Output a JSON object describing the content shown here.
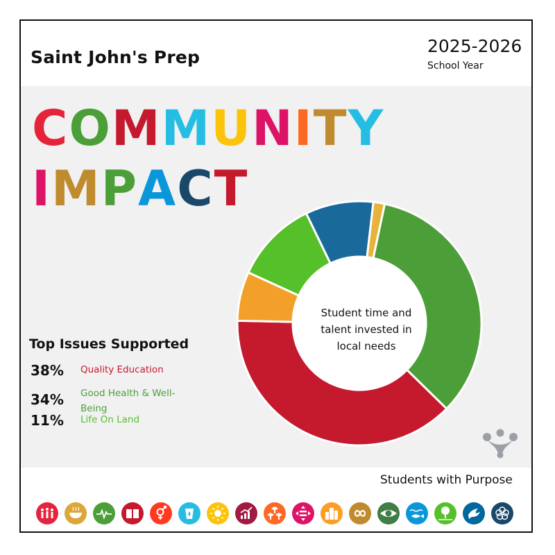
{
  "header": {
    "school_name": "Saint John's Prep",
    "year": "2025-2026",
    "year_label": "School Year"
  },
  "title": {
    "line1": "COMMUNITY",
    "line2": "IMPACT",
    "letter_colors_line1": [
      "#e5243b",
      "#4c9f38",
      "#c5192d",
      "#26bde2",
      "#fcc30b",
      "#dd1367",
      "#fd6925",
      "#bf8b2e",
      "#26bde2",
      "#19486a"
    ],
    "letter_colors_line2": [
      "#dd1367",
      "#bf8b2e",
      "#4c9f38",
      "#0a97d9",
      "#19486a",
      "#c5192d"
    ]
  },
  "donut": {
    "center_text_line1": "Student time and",
    "center_text_line2": "talent invested in",
    "center_text_line3": "local needs"
  },
  "chart_data": {
    "type": "pie",
    "donut": true,
    "slices": [
      {
        "label": "Quality Education",
        "value": 38,
        "color": "#c5192d"
      },
      {
        "label": "Good Health & Well-Being",
        "value": 34,
        "color": "#4c9f38"
      },
      {
        "label": "Life On Land",
        "value": 11,
        "color": "#56c02b"
      },
      {
        "label": "",
        "value": 9,
        "color": "#19699b"
      },
      {
        "label": "",
        "value": 6.5,
        "color": "#f3a02b"
      },
      {
        "label": "",
        "value": 1.5,
        "color": "#e6b43a"
      }
    ]
  },
  "issues": {
    "title": "Top Issues Supported",
    "items": [
      {
        "pct": "38%",
        "name": "Quality Education",
        "color": "#c5192d"
      },
      {
        "pct": "34%",
        "name": "Good Health & Well-Being",
        "color": "#4c9f38"
      },
      {
        "pct": "11%",
        "name": "Life On Land",
        "color": "#56c02b"
      }
    ]
  },
  "footer": {
    "tagline": "Students with Purpose",
    "sdg_icons": [
      {
        "icon": "people-icon",
        "color": "#e5243b"
      },
      {
        "icon": "bowl-icon",
        "color": "#dda63a"
      },
      {
        "icon": "heartbeat-icon",
        "color": "#4c9f38"
      },
      {
        "icon": "book-icon",
        "color": "#c5192d"
      },
      {
        "icon": "gender-icon",
        "color": "#ff3a21"
      },
      {
        "icon": "water-icon",
        "color": "#26bde2"
      },
      {
        "icon": "sun-icon",
        "color": "#fcc30b"
      },
      {
        "icon": "growth-chart-icon",
        "color": "#a21942"
      },
      {
        "icon": "cubes-icon",
        "color": "#fd6925"
      },
      {
        "icon": "equality-icon",
        "color": "#dd1367"
      },
      {
        "icon": "city-icon",
        "color": "#fd9d24"
      },
      {
        "icon": "infinity-icon",
        "color": "#bf8b2e"
      },
      {
        "icon": "eye-globe-icon",
        "color": "#3f7e44"
      },
      {
        "icon": "fish-icon",
        "color": "#0a97d9"
      },
      {
        "icon": "tree-icon",
        "color": "#56c02b"
      },
      {
        "icon": "dove-icon",
        "color": "#00689d"
      },
      {
        "icon": "wheel-icon",
        "color": "#19486a"
      }
    ]
  }
}
